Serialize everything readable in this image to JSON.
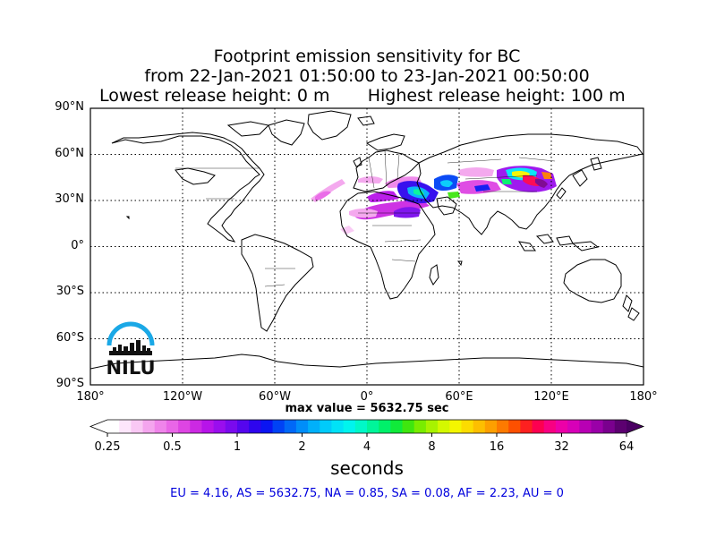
{
  "title": {
    "line1": "Footprint emission sensitivity for BC",
    "line2": "from 22-Jan-2021 01:50:00 to 23-Jan-2021 00:50:00",
    "line3": "Lowest release height: 0 m       Highest release height: 100 m"
  },
  "map": {
    "lat_labels": [
      "90°N",
      "60°N",
      "30°N",
      "0°",
      "30°S",
      "60°S",
      "90°S"
    ],
    "lon_labels": [
      "180°",
      "120°W",
      "60°W",
      "0°",
      "60°E",
      "120°E",
      "180°"
    ],
    "grid": true,
    "projection": "equirectangular",
    "lat_range": [
      -90,
      90
    ],
    "lon_range": [
      -180,
      180
    ]
  },
  "max_value_text": "max value = 5632.75 sec",
  "colorbar": {
    "tick_labels": [
      "0.25",
      "0.5",
      "1",
      "2",
      "4",
      "8",
      "16",
      "32",
      "64"
    ],
    "unit": "seconds",
    "scale": "log2",
    "range": [
      0.25,
      64
    ],
    "colors": [
      "#ffffff",
      "#fde6fb",
      "#f9c8f4",
      "#f4a5ee",
      "#ef84ea",
      "#e966e7",
      "#de45e3",
      "#cc29e3",
      "#b714e9",
      "#9a0eee",
      "#7a0aee",
      "#5506ee",
      "#2e05ee",
      "#0a15f2",
      "#0042f5",
      "#0068f7",
      "#008ef9",
      "#00b0fa",
      "#00cbfa",
      "#00e2f7",
      "#00f4ee",
      "#00f8c8",
      "#00f59a",
      "#00f06a",
      "#10ea3a",
      "#3fe60f",
      "#79ec00",
      "#a8f200",
      "#d4f800",
      "#f4f600",
      "#fcdc00",
      "#fdbf00",
      "#fd9f00",
      "#fd7a00",
      "#fd5000",
      "#fd2020",
      "#fd0050",
      "#f80082",
      "#ed00a8",
      "#d700b8",
      "#b800b4",
      "#9a00a8",
      "#7a008e",
      "#5c0070"
    ]
  },
  "region_values": "EU = 4.16,  AS = 5632.75,  NA = 0.85,  SA = 0.08,  AF = 2.23,  AU = 0",
  "logo": {
    "text": "NILU",
    "arc_color": "#1aa8e6"
  }
}
